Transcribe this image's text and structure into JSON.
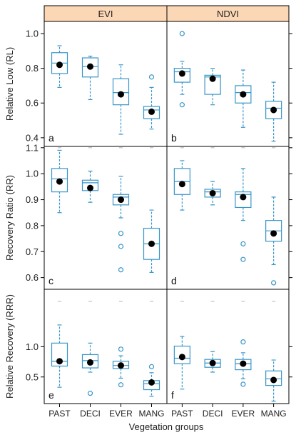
{
  "chart_data": {
    "type": "box",
    "strip_labels": [
      "EVI",
      "NDVI"
    ],
    "xlabel": "Vegetation groups",
    "categories": [
      "PAST",
      "DECI",
      "EVER",
      "MANG"
    ],
    "colors": {
      "box": "#3a96c8",
      "strip_fill": "#fbd7b5",
      "mean": "#000000"
    },
    "rows": [
      {
        "ylabel": "Relative Low (RL)",
        "ylim": [
          0.35,
          1.07
        ],
        "ticks": [
          "0.4",
          "0.6",
          "0.8",
          "1.0"
        ],
        "tick_values": [
          0.4,
          0.6,
          0.8,
          1.0
        ],
        "panels": [
          {
            "letter": "a",
            "groups": [
              {
                "whisker_low": 0.69,
                "q1": 0.77,
                "median": 0.83,
                "q3": 0.89,
                "whisker_high": 0.93,
                "mean": 0.82,
                "outliers": []
              },
              {
                "whisker_low": 0.62,
                "q1": 0.75,
                "median": 0.81,
                "q3": 0.86,
                "whisker_high": 0.87,
                "mean": 0.81,
                "outliers": []
              },
              {
                "whisker_low": 0.42,
                "q1": 0.59,
                "median": 0.66,
                "q3": 0.74,
                "whisker_high": 0.82,
                "mean": 0.65,
                "outliers": []
              },
              {
                "whisker_low": 0.45,
                "q1": 0.51,
                "median": 0.56,
                "q3": 0.58,
                "whisker_high": 0.69,
                "mean": 0.55,
                "outliers": [
                  0.75
                ]
              }
            ]
          },
          {
            "letter": "b",
            "groups": [
              {
                "whisker_low": 0.65,
                "q1": 0.72,
                "median": 0.78,
                "q3": 0.8,
                "whisker_high": 0.84,
                "mean": 0.77,
                "outliers": [
                  0.59,
                  1.0
                ]
              },
              {
                "whisker_low": 0.59,
                "q1": 0.65,
                "median": 0.75,
                "q3": 0.76,
                "whisker_high": 0.8,
                "mean": 0.74,
                "outliers": []
              },
              {
                "whisker_low": 0.46,
                "q1": 0.6,
                "median": 0.66,
                "q3": 0.7,
                "whisker_high": 0.79,
                "mean": 0.65,
                "outliers": []
              },
              {
                "whisker_low": 0.38,
                "q1": 0.51,
                "median": 0.57,
                "q3": 0.61,
                "whisker_high": 0.72,
                "mean": 0.56,
                "outliers": []
              }
            ]
          }
        ]
      },
      {
        "ylabel": "Recovery Ratio (RR)",
        "ylim": [
          0.555,
          1.105
        ],
        "ticks": [
          "0.6",
          "0.7",
          "0.8",
          "0.9",
          "1.0",
          "1.1"
        ],
        "tick_values": [
          0.6,
          0.7,
          0.8,
          0.9,
          1.0,
          1.1
        ],
        "panels": [
          {
            "letter": "c",
            "groups": [
              {
                "whisker_low": 0.85,
                "q1": 0.93,
                "median": 0.98,
                "q3": 1.02,
                "whisker_high": 1.09,
                "mean": 0.97,
                "outliers": [],
                "cap": 1.1
              },
              {
                "whisker_low": 0.89,
                "q1": 0.935,
                "median": 0.965,
                "q3": 0.975,
                "whisker_high": 1.01,
                "mean": 0.945,
                "outliers": [],
                "cap": 1.1
              },
              {
                "whisker_low": 0.83,
                "q1": 0.88,
                "median": 0.91,
                "q3": 0.92,
                "whisker_high": 0.99,
                "mean": 0.9,
                "outliers": [
                  0.77,
                  0.72,
                  0.63
                ],
                "cap": 1.1
              },
              {
                "whisker_low": 0.62,
                "q1": 0.67,
                "median": 0.73,
                "q3": 0.79,
                "whisker_high": 0.86,
                "mean": 0.73,
                "outliers": [],
                "cap": 1.1
              }
            ]
          },
          {
            "letter": "d",
            "groups": [
              {
                "whisker_low": 0.86,
                "q1": 0.92,
                "median": 0.97,
                "q3": 1.02,
                "whisker_high": 1.05,
                "mean": 0.96,
                "outliers": [],
                "cap": 1.1
              },
              {
                "whisker_low": 0.88,
                "q1": 0.91,
                "median": 0.93,
                "q3": 0.94,
                "whisker_high": 0.97,
                "mean": 0.925,
                "outliers": [],
                "cap": 1.1
              },
              {
                "whisker_low": 0.82,
                "q1": 0.87,
                "median": 0.92,
                "q3": 0.93,
                "whisker_high": 1.02,
                "mean": 0.91,
                "outliers": [
                  0.73,
                  0.67
                ],
                "cap": 1.1
              },
              {
                "whisker_low": 0.65,
                "q1": 0.74,
                "median": 0.78,
                "q3": 0.82,
                "whisker_high": 0.91,
                "mean": 0.77,
                "outliers": [
                  0.58
                ],
                "cap": 1.1
              }
            ]
          }
        ]
      },
      {
        "ylabel": "Relative Recovery (RRR)",
        "ylim": [
          0.06,
          1.95
        ],
        "ticks": [
          "0.5",
          "1.0"
        ],
        "tick_values": [
          0.5,
          1.0
        ],
        "panels": [
          {
            "letter": "e",
            "groups": [
              {
                "whisker_low": 0.33,
                "q1": 0.68,
                "median": 0.76,
                "q3": 1.06,
                "whisker_high": 1.36,
                "mean": 0.76,
                "outliers": [],
                "cap": 1.75
              },
              {
                "whisker_low": 0.58,
                "q1": 0.65,
                "median": 0.77,
                "q3": 0.87,
                "whisker_high": 1.06,
                "mean": 0.74,
                "outliers": [
                  0.23
                ],
                "cap": 1.75
              },
              {
                "whisker_low": 0.48,
                "q1": 0.64,
                "median": 0.69,
                "q3": 0.76,
                "whisker_high": 0.85,
                "mean": 0.69,
                "outliers": [
                  0.96,
                  0.37
                ],
                "cap": 1.75
              },
              {
                "whisker_low": 0.18,
                "q1": 0.29,
                "median": 0.39,
                "q3": 0.44,
                "whisker_high": 0.57,
                "mean": 0.41,
                "outliers": [
                  0.67
                ],
                "cap": 1.75
              }
            ]
          },
          {
            "letter": "f",
            "groups": [
              {
                "whisker_low": 0.3,
                "q1": 0.72,
                "median": 0.81,
                "q3": 1.01,
                "whisker_high": 1.17,
                "mean": 0.83,
                "outliers": [],
                "cap": 1.75
              },
              {
                "whisker_low": 0.58,
                "q1": 0.66,
                "median": 0.73,
                "q3": 0.79,
                "whisker_high": 0.92,
                "mean": 0.73,
                "outliers": [],
                "cap": 1.75
              },
              {
                "whisker_low": 0.47,
                "q1": 0.62,
                "median": 0.72,
                "q3": 0.79,
                "whisker_high": 0.9,
                "mean": 0.72,
                "outliers": [
                  1.08,
                  0.38
                ],
                "cap": 1.75
              },
              {
                "whisker_low": 0.1,
                "q1": 0.36,
                "median": 0.47,
                "q3": 0.6,
                "whisker_high": 0.78,
                "mean": 0.45,
                "outliers": [],
                "cap": 1.75
              }
            ]
          }
        ]
      }
    ]
  }
}
